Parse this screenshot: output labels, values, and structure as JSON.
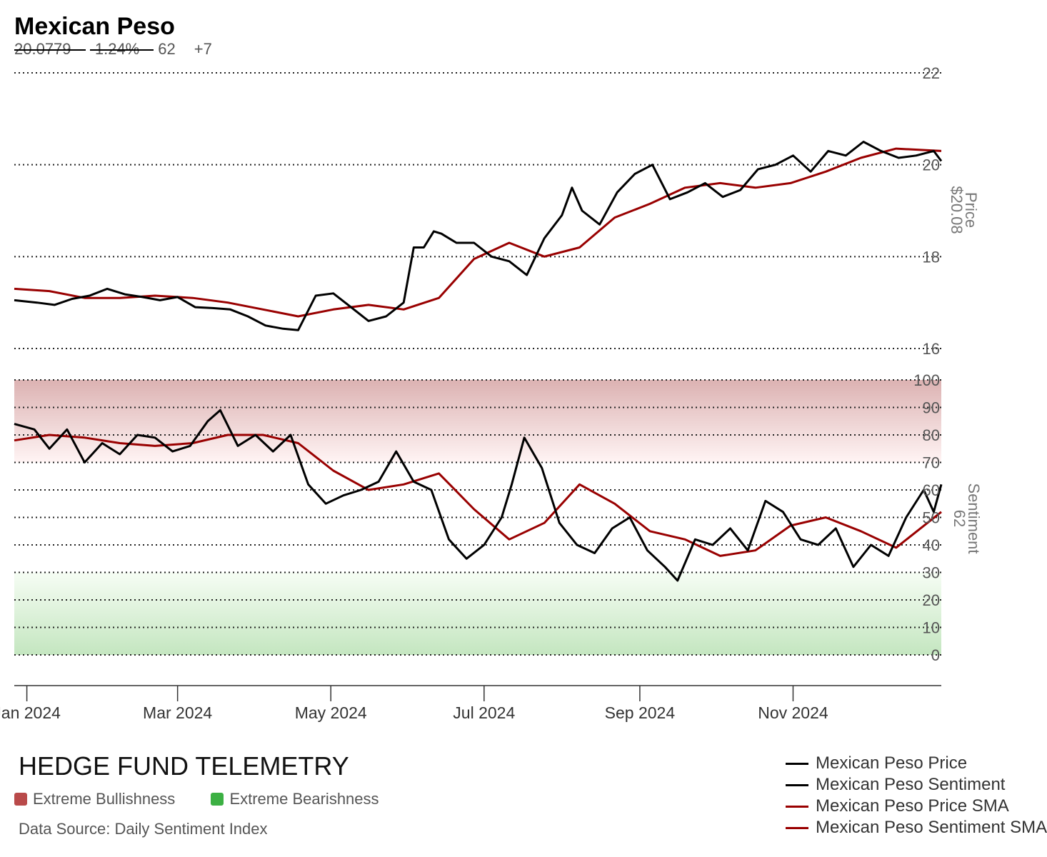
{
  "header": {
    "title": "Mexican Peso",
    "price": "20.0779",
    "change": "-1.24%",
    "sentiment": "62",
    "sentiment_change": "+7"
  },
  "axes": {
    "price_label": "Price",
    "price_value": "$20.08",
    "sentiment_label": "Sentiment",
    "sentiment_value": "62"
  },
  "footer": {
    "brand": "HEDGE FUND TELEMETRY",
    "key_bull": "Extreme Bullishness",
    "key_bear": "Extreme Bearishness",
    "source": "Data Source: Daily Sentiment Index"
  },
  "colors": {
    "price_line": "#000000",
    "sma_line": "#990000",
    "bull_zone": "#b94a4a",
    "bear_zone": "#3cb043"
  },
  "legend": [
    {
      "label": "Mexican Peso Price",
      "color": "#000000"
    },
    {
      "label": "Mexican Peso Sentiment",
      "color": "#000000"
    },
    {
      "label": "Mexican Peso Price SMA",
      "color": "#990000"
    },
    {
      "label": "Mexican Peso Sentiment SMA",
      "color": "#990000"
    }
  ],
  "chart_data": [
    {
      "type": "line",
      "panel": "price",
      "ylim": [
        16,
        22
      ],
      "yticks": [
        16,
        18,
        20,
        22
      ],
      "x_range": [
        "2023-12-27",
        "2024-12-30"
      ],
      "xticks": [
        {
          "date": "2024-01-01",
          "label": "Jan 2024"
        },
        {
          "date": "2024-03-01",
          "label": "Mar 2024"
        },
        {
          "date": "2024-05-01",
          "label": "May 2024"
        },
        {
          "date": "2024-07-01",
          "label": "Jul 2024"
        },
        {
          "date": "2024-09-01",
          "label": "Sep 2024"
        },
        {
          "date": "2024-11-01",
          "label": "Nov 2024"
        }
      ],
      "grid": "dotted horizontal",
      "series": [
        {
          "name": "Mexican Peso Price",
          "points": [
            [
              "2023-12-27",
              17.05
            ],
            [
              "2024-01-05",
              17.0
            ],
            [
              "2024-01-12",
              16.95
            ],
            [
              "2024-01-19",
              17.08
            ],
            [
              "2024-01-26",
              17.15
            ],
            [
              "2024-02-02",
              17.3
            ],
            [
              "2024-02-09",
              17.18
            ],
            [
              "2024-02-16",
              17.12
            ],
            [
              "2024-02-23",
              17.05
            ],
            [
              "2024-03-01",
              17.12
            ],
            [
              "2024-03-08",
              16.9
            ],
            [
              "2024-03-15",
              16.88
            ],
            [
              "2024-03-22",
              16.85
            ],
            [
              "2024-03-29",
              16.7
            ],
            [
              "2024-04-05",
              16.5
            ],
            [
              "2024-04-12",
              16.43
            ],
            [
              "2024-04-18",
              16.4
            ],
            [
              "2024-04-25",
              17.15
            ],
            [
              "2024-05-02",
              17.2
            ],
            [
              "2024-05-09",
              16.9
            ],
            [
              "2024-05-16",
              16.6
            ],
            [
              "2024-05-23",
              16.7
            ],
            [
              "2024-05-30",
              17.0
            ],
            [
              "2024-06-03",
              18.2
            ],
            [
              "2024-06-07",
              18.2
            ],
            [
              "2024-06-11",
              18.55
            ],
            [
              "2024-06-14",
              18.5
            ],
            [
              "2024-06-20",
              18.3
            ],
            [
              "2024-06-27",
              18.3
            ],
            [
              "2024-07-04",
              18.0
            ],
            [
              "2024-07-11",
              17.9
            ],
            [
              "2024-07-18",
              17.6
            ],
            [
              "2024-07-25",
              18.4
            ],
            [
              "2024-08-01",
              18.9
            ],
            [
              "2024-08-05",
              19.5
            ],
            [
              "2024-08-09",
              19.0
            ],
            [
              "2024-08-16",
              18.7
            ],
            [
              "2024-08-23",
              19.4
            ],
            [
              "2024-08-30",
              19.8
            ],
            [
              "2024-09-06",
              20.0
            ],
            [
              "2024-09-13",
              19.25
            ],
            [
              "2024-09-20",
              19.4
            ],
            [
              "2024-09-27",
              19.6
            ],
            [
              "2024-10-04",
              19.3
            ],
            [
              "2024-10-11",
              19.45
            ],
            [
              "2024-10-18",
              19.9
            ],
            [
              "2024-10-25",
              20.0
            ],
            [
              "2024-11-01",
              20.2
            ],
            [
              "2024-11-08",
              19.85
            ],
            [
              "2024-11-15",
              20.3
            ],
            [
              "2024-11-22",
              20.2
            ],
            [
              "2024-11-29",
              20.5
            ],
            [
              "2024-12-06",
              20.3
            ],
            [
              "2024-12-13",
              20.15
            ],
            [
              "2024-12-20",
              20.2
            ],
            [
              "2024-12-27",
              20.3
            ],
            [
              "2024-12-30",
              20.08
            ]
          ]
        },
        {
          "name": "Mexican Peso Price SMA",
          "points": [
            [
              "2023-12-27",
              17.3
            ],
            [
              "2024-01-10",
              17.25
            ],
            [
              "2024-01-24",
              17.1
            ],
            [
              "2024-02-07",
              17.1
            ],
            [
              "2024-02-21",
              17.15
            ],
            [
              "2024-03-07",
              17.1
            ],
            [
              "2024-03-21",
              17.0
            ],
            [
              "2024-04-04",
              16.85
            ],
            [
              "2024-04-18",
              16.7
            ],
            [
              "2024-05-02",
              16.85
            ],
            [
              "2024-05-16",
              16.95
            ],
            [
              "2024-05-30",
              16.85
            ],
            [
              "2024-06-13",
              17.1
            ],
            [
              "2024-06-27",
              17.95
            ],
            [
              "2024-07-11",
              18.3
            ],
            [
              "2024-07-25",
              18.0
            ],
            [
              "2024-08-08",
              18.2
            ],
            [
              "2024-08-22",
              18.85
            ],
            [
              "2024-09-05",
              19.15
            ],
            [
              "2024-09-19",
              19.5
            ],
            [
              "2024-10-03",
              19.6
            ],
            [
              "2024-10-17",
              19.5
            ],
            [
              "2024-10-31",
              19.6
            ],
            [
              "2024-11-14",
              19.85
            ],
            [
              "2024-11-28",
              20.15
            ],
            [
              "2024-12-12",
              20.35
            ],
            [
              "2024-12-30",
              20.3
            ]
          ]
        }
      ]
    },
    {
      "type": "line",
      "panel": "sentiment",
      "ylim": [
        0,
        100
      ],
      "yticks": [
        0,
        10,
        20,
        30,
        40,
        50,
        60,
        70,
        80,
        90,
        100
      ],
      "bands": [
        {
          "name": "Extreme Bullishness",
          "range": [
            70,
            100
          ]
        },
        {
          "name": "Extreme Bearishness",
          "range": [
            0,
            30
          ]
        }
      ],
      "grid": "dotted horizontal",
      "series": [
        {
          "name": "Mexican Peso Sentiment",
          "points": [
            [
              "2023-12-27",
              84
            ],
            [
              "2024-01-04",
              82
            ],
            [
              "2024-01-10",
              75
            ],
            [
              "2024-01-17",
              82
            ],
            [
              "2024-01-24",
              70
            ],
            [
              "2024-01-31",
              77
            ],
            [
              "2024-02-07",
              73
            ],
            [
              "2024-02-14",
              80
            ],
            [
              "2024-02-21",
              79
            ],
            [
              "2024-02-28",
              74
            ],
            [
              "2024-03-06",
              76
            ],
            [
              "2024-03-13",
              85
            ],
            [
              "2024-03-18",
              89
            ],
            [
              "2024-03-25",
              76
            ],
            [
              "2024-04-01",
              80
            ],
            [
              "2024-04-08",
              74
            ],
            [
              "2024-04-15",
              80
            ],
            [
              "2024-04-22",
              62
            ],
            [
              "2024-04-29",
              55
            ],
            [
              "2024-05-06",
              58
            ],
            [
              "2024-05-13",
              60
            ],
            [
              "2024-05-20",
              63
            ],
            [
              "2024-05-27",
              74
            ],
            [
              "2024-06-03",
              63
            ],
            [
              "2024-06-10",
              60
            ],
            [
              "2024-06-17",
              42
            ],
            [
              "2024-06-24",
              35
            ],
            [
              "2024-07-01",
              40
            ],
            [
              "2024-07-08",
              50
            ],
            [
              "2024-07-12",
              62
            ],
            [
              "2024-07-17",
              79
            ],
            [
              "2024-07-24",
              68
            ],
            [
              "2024-07-31",
              48
            ],
            [
              "2024-08-07",
              40
            ],
            [
              "2024-08-14",
              37
            ],
            [
              "2024-08-21",
              46
            ],
            [
              "2024-08-28",
              50
            ],
            [
              "2024-09-04",
              38
            ],
            [
              "2024-09-11",
              32
            ],
            [
              "2024-09-16",
              27
            ],
            [
              "2024-09-23",
              42
            ],
            [
              "2024-09-30",
              40
            ],
            [
              "2024-10-07",
              46
            ],
            [
              "2024-10-14",
              38
            ],
            [
              "2024-10-21",
              56
            ],
            [
              "2024-10-28",
              52
            ],
            [
              "2024-11-04",
              42
            ],
            [
              "2024-11-11",
              40
            ],
            [
              "2024-11-18",
              46
            ],
            [
              "2024-11-25",
              32
            ],
            [
              "2024-12-02",
              40
            ],
            [
              "2024-12-09",
              36
            ],
            [
              "2024-12-16",
              50
            ],
            [
              "2024-12-23",
              60
            ],
            [
              "2024-12-27",
              52
            ],
            [
              "2024-12-30",
              62
            ]
          ]
        },
        {
          "name": "Mexican Peso Sentiment SMA",
          "points": [
            [
              "2023-12-27",
              78
            ],
            [
              "2024-01-10",
              80
            ],
            [
              "2024-01-24",
              79
            ],
            [
              "2024-02-07",
              77
            ],
            [
              "2024-02-21",
              76
            ],
            [
              "2024-03-07",
              77
            ],
            [
              "2024-03-21",
              80
            ],
            [
              "2024-04-04",
              80
            ],
            [
              "2024-04-18",
              77
            ],
            [
              "2024-05-02",
              67
            ],
            [
              "2024-05-16",
              60
            ],
            [
              "2024-05-30",
              62
            ],
            [
              "2024-06-13",
              66
            ],
            [
              "2024-06-27",
              53
            ],
            [
              "2024-07-11",
              42
            ],
            [
              "2024-07-25",
              48
            ],
            [
              "2024-08-08",
              62
            ],
            [
              "2024-08-22",
              55
            ],
            [
              "2024-09-05",
              45
            ],
            [
              "2024-09-19",
              42
            ],
            [
              "2024-10-03",
              36
            ],
            [
              "2024-10-17",
              38
            ],
            [
              "2024-10-31",
              47
            ],
            [
              "2024-11-14",
              50
            ],
            [
              "2024-11-28",
              45
            ],
            [
              "2024-12-12",
              39
            ],
            [
              "2024-12-30",
              52
            ]
          ]
        }
      ]
    }
  ]
}
